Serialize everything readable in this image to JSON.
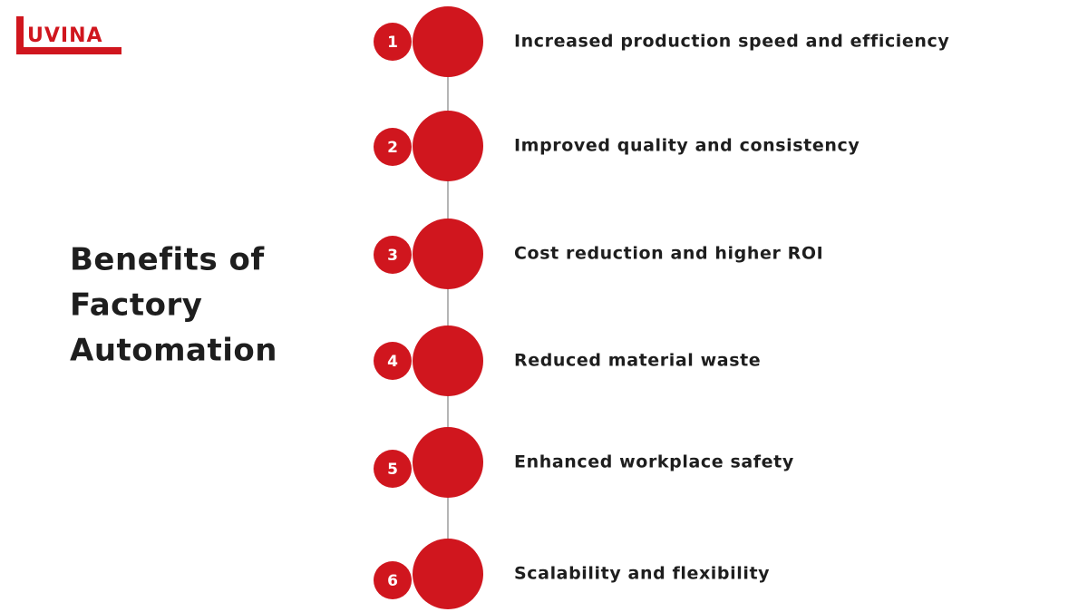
{
  "logo": {
    "text": "UVINA"
  },
  "title": {
    "lines": [
      "Benefits of",
      "Factory",
      "Automation"
    ]
  },
  "items": [
    {
      "number": 1,
      "text": "Increased production speed and efficiency"
    },
    {
      "number": 2,
      "text": "Improved quality and consistency"
    },
    {
      "number": 3,
      "text": "Cost reduction and higher ROI"
    },
    {
      "number": 4,
      "text": "Reduced material waste"
    },
    {
      "number": 5,
      "text": "Enhanced workplace safety"
    },
    {
      "number": 6,
      "text": "Scalability and flexibility"
    }
  ]
}
